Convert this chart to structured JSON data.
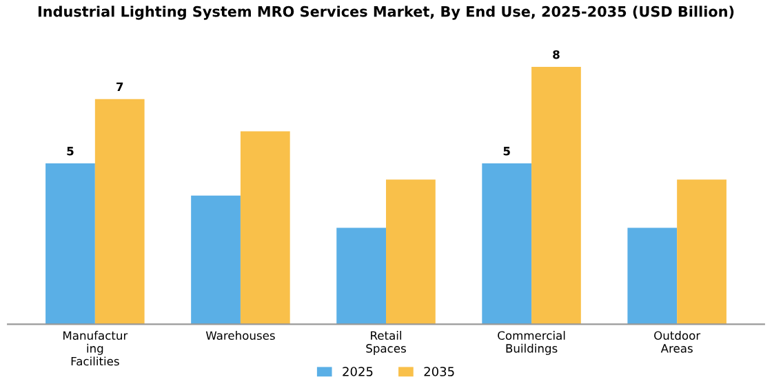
{
  "chart_data": {
    "type": "bar",
    "title": "Industrial Lighting System MRO Services Market, By End Use, 2025-2035 (USD Billion)",
    "categories": [
      "Manufactur\ning\nFacilities",
      "Warehouses",
      "Retail\nSpaces",
      "Commercial\nBuildings",
      "Outdoor\nAreas"
    ],
    "series": [
      {
        "name": "2025",
        "color": "#5aafe6",
        "values": [
          5,
          4,
          3,
          5,
          3
        ],
        "value_labels": [
          "5",
          null,
          null,
          "5",
          null
        ]
      },
      {
        "name": "2035",
        "color": "#f9c04a",
        "values": [
          7,
          6,
          4.5,
          8,
          4.5
        ],
        "value_labels": [
          "7",
          null,
          null,
          "8",
          null
        ]
      }
    ],
    "legend": "bottom",
    "grid": false
  }
}
